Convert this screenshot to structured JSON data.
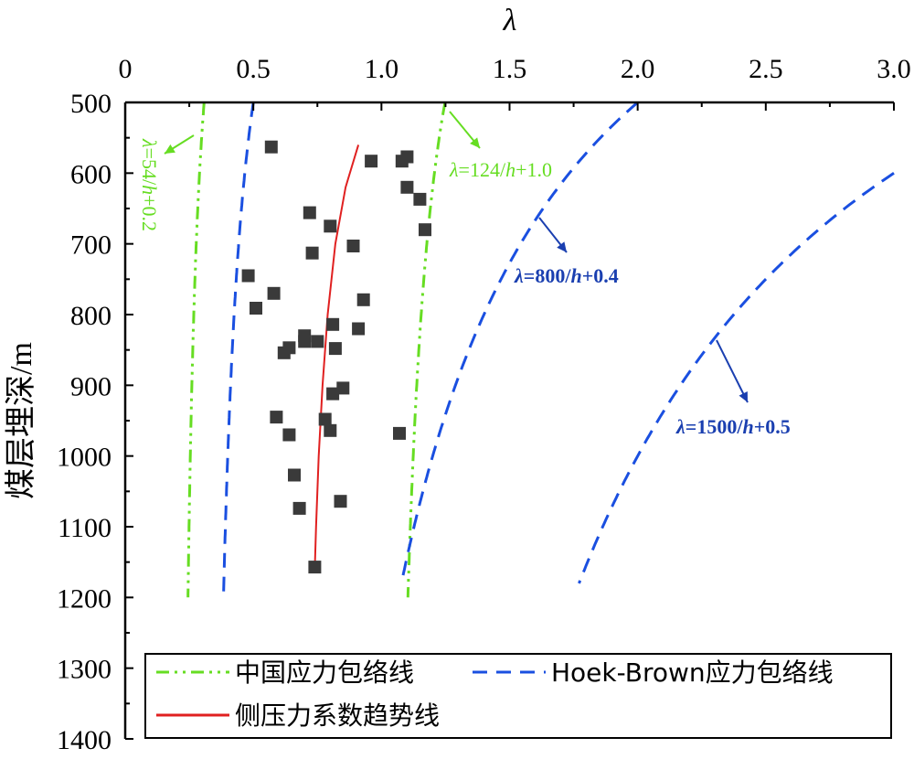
{
  "chart_data": {
    "type": "scatter",
    "title": "",
    "xlabel": "λ",
    "ylabel": "煤层埋深/m",
    "xlim": [
      0,
      3.0
    ],
    "ylim": [
      1400,
      500
    ],
    "y_inverted": true,
    "x_axis_position": "top",
    "x_ticks": [
      "0",
      "0.5",
      "1.0",
      "1.5",
      "2.0",
      "2.5",
      "3.0"
    ],
    "y_ticks": [
      "500",
      "600",
      "700",
      "800",
      "900",
      "1000",
      "1100",
      "1200",
      "1300",
      "1400"
    ],
    "x_tick_values": [
      0,
      0.5,
      1.0,
      1.5,
      2.0,
      2.5,
      3.0
    ],
    "y_tick_values": [
      500,
      600,
      700,
      800,
      900,
      1000,
      1100,
      1200,
      1300,
      1400
    ],
    "points": [
      {
        "x": 0.57,
        "y": 563
      },
      {
        "x": 0.96,
        "y": 583
      },
      {
        "x": 1.08,
        "y": 583
      },
      {
        "x": 1.1,
        "y": 577
      },
      {
        "x": 1.1,
        "y": 620
      },
      {
        "x": 1.15,
        "y": 637
      },
      {
        "x": 0.72,
        "y": 656
      },
      {
        "x": 0.8,
        "y": 675
      },
      {
        "x": 1.17,
        "y": 680
      },
      {
        "x": 0.89,
        "y": 703
      },
      {
        "x": 0.73,
        "y": 713
      },
      {
        "x": 0.48,
        "y": 745
      },
      {
        "x": 0.58,
        "y": 770
      },
      {
        "x": 0.93,
        "y": 779
      },
      {
        "x": 0.51,
        "y": 791
      },
      {
        "x": 0.81,
        "y": 814
      },
      {
        "x": 0.91,
        "y": 820
      },
      {
        "x": 0.7,
        "y": 830
      },
      {
        "x": 0.7,
        "y": 838
      },
      {
        "x": 0.75,
        "y": 838
      },
      {
        "x": 0.64,
        "y": 847
      },
      {
        "x": 0.62,
        "y": 854
      },
      {
        "x": 0.82,
        "y": 848
      },
      {
        "x": 0.85,
        "y": 904
      },
      {
        "x": 0.81,
        "y": 912
      },
      {
        "x": 0.59,
        "y": 945
      },
      {
        "x": 0.78,
        "y": 948
      },
      {
        "x": 0.64,
        "y": 970
      },
      {
        "x": 0.8,
        "y": 964
      },
      {
        "x": 1.07,
        "y": 968
      },
      {
        "x": 0.66,
        "y": 1027
      },
      {
        "x": 0.84,
        "y": 1064
      },
      {
        "x": 0.68,
        "y": 1074
      },
      {
        "x": 0.74,
        "y": 1157
      }
    ],
    "series": [
      {
        "name": "中国应力包络线",
        "key": "china_low",
        "a": 54,
        "b": 0.2,
        "h_range": [
          500,
          1200
        ],
        "color": "#66dd22",
        "dash": "dashdotdot"
      },
      {
        "name": "中国应力包络线",
        "key": "china_high",
        "a": 124,
        "b": 1.0,
        "h_range": [
          500,
          1200
        ],
        "color": "#66dd22",
        "dash": "dashdotdot"
      },
      {
        "name": "Hoek-Brown应力包络线",
        "key": "hb_low",
        "a": 100,
        "b": 0.3,
        "h_range": [
          500,
          1200
        ],
        "color": "#1a4fe0",
        "dash": "dash"
      },
      {
        "name": "Hoek-Brown应力包络线",
        "key": "hb_mid",
        "a": 800,
        "b": 0.4,
        "h_range": [
          500,
          1180
        ],
        "color": "#1a4fe0",
        "dash": "dash"
      },
      {
        "name": "Hoek-Brown应力包络线",
        "key": "hb_high",
        "a": 1500,
        "b": 0.5,
        "h_range": [
          600,
          1180
        ],
        "color": "#1a4fe0",
        "dash": "dash"
      },
      {
        "name": "侧压力系数趋势线",
        "key": "trend",
        "color": "#e02020",
        "dash": "solid",
        "points": [
          {
            "x": 0.91,
            "y": 560
          },
          {
            "x": 0.86,
            "y": 620
          },
          {
            "x": 0.82,
            "y": 700
          },
          {
            "x": 0.79,
            "y": 800
          },
          {
            "x": 0.77,
            "y": 900
          },
          {
            "x": 0.755,
            "y": 1000
          },
          {
            "x": 0.745,
            "y": 1100
          },
          {
            "x": 0.74,
            "y": 1160
          }
        ]
      }
    ],
    "annotations": [
      {
        "text": "λ=54/h+0.2",
        "color": "#66dd22"
      },
      {
        "text": "λ=124/h+1.0",
        "color": "#66dd22"
      },
      {
        "text": "λ=800/h+0.4",
        "color": "#1a3fb0"
      },
      {
        "text": "λ=1500/h+0.5",
        "color": "#1a3fb0"
      }
    ],
    "legend": {
      "placement": "bottom",
      "entries": [
        {
          "label": "中国应力包络线",
          "color": "#66dd22",
          "dash": "dashdotdot"
        },
        {
          "label": "Hoek-Brown应力包络线",
          "color": "#1a4fe0",
          "dash": "dash"
        },
        {
          "label": "侧压力系数趋势线",
          "color": "#e02020",
          "dash": "solid"
        }
      ]
    },
    "grid": false,
    "marker_color": "#3a3a3a"
  }
}
